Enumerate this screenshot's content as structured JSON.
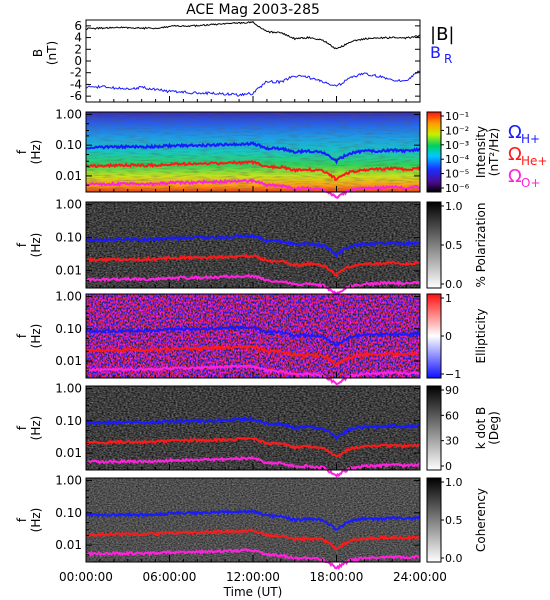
{
  "title": "ACE Mag 2003-285",
  "x_axis": {
    "label": "Time (UT)",
    "tick_labels": [
      "00:00:00",
      "06:00:00",
      "12:00:00",
      "18:00:00",
      "24:00:00"
    ],
    "tick_hours": [
      0,
      6,
      12,
      18,
      24
    ],
    "range_hours": [
      0,
      24
    ]
  },
  "line_panel": {
    "ylabel_top": "B",
    "ylabel_bottom": "(nT)",
    "yticks": [
      "6",
      "4",
      "2",
      "0",
      "-2",
      "-4",
      "-6"
    ],
    "ytick_values": [
      6,
      4,
      2,
      0,
      -2,
      -4,
      -6
    ],
    "ylim": [
      -7,
      7
    ],
    "legend": {
      "b_label": "|B|",
      "br_label": "B",
      "br_sub": "R"
    }
  },
  "spectro_panels": [
    {
      "id": "intensity",
      "cb_label": "Intensity",
      "cb_unit": "(nT²/Hz)",
      "cb_ticks": [
        "10⁻¹",
        "10⁻²",
        "10⁻³",
        "10⁻⁴",
        "10⁻⁵",
        "10⁻⁶"
      ],
      "colormap": "rainbow"
    },
    {
      "id": "polarization",
      "cb_label": "% Polarization",
      "cb_unit": "",
      "cb_ticks": [
        "1.0",
        "0.5",
        "0.0"
      ],
      "colormap": "gray"
    },
    {
      "id": "ellipticity",
      "cb_label": "Ellipticity",
      "cb_unit": "",
      "cb_ticks": [
        "1",
        "0",
        "−1"
      ],
      "colormap": "bwr"
    },
    {
      "id": "kdotb",
      "cb_label": "k dot B",
      "cb_unit": "(Deg)",
      "cb_ticks": [
        "90",
        "60",
        "30",
        "0"
      ],
      "colormap": "gray"
    },
    {
      "id": "coherency",
      "cb_label": "Coherency",
      "cb_unit": "",
      "cb_ticks": [
        "1.0",
        "0.5",
        "0.0"
      ],
      "colormap": "gray"
    }
  ],
  "spectro_axis": {
    "ylabel_top": "f",
    "ylabel_bottom": "(Hz)",
    "yticks": [
      "1.00",
      "0.10",
      "0.01"
    ],
    "ytick_values": [
      1.0,
      0.1,
      0.01
    ],
    "ylim": [
      0.003,
      1.2
    ],
    "scale": "log"
  },
  "gyro_legend": [
    {
      "symbol": "Ω",
      "sub": "H+",
      "color": "#1a1aff"
    },
    {
      "symbol": "Ω",
      "sub": "He+",
      "color": "#ff1a1a"
    },
    {
      "symbol": "Ω",
      "sub": "O+",
      "color": "#ff22dd"
    }
  ],
  "colors": {
    "b_mag": "#000000",
    "b_r": "#1a1aff",
    "omega_h": "#1a1aff",
    "omega_he": "#ff1a1a",
    "omega_o": "#ff22dd"
  },
  "chart_data": {
    "type": "line",
    "title": "ACE Mag 2003-285",
    "xlabel": "Time (UT)",
    "ylabel": "B (nT)",
    "xlim": [
      0,
      24
    ],
    "ylim": [
      -7,
      7
    ],
    "x": [
      0,
      1,
      2,
      3,
      4,
      5,
      6,
      7,
      8,
      9,
      10,
      11,
      12,
      13,
      14,
      15,
      16,
      17,
      18,
      19,
      20,
      21,
      22,
      23,
      24
    ],
    "series": [
      {
        "name": "|B|",
        "values": [
          5.5,
          5.6,
          5.7,
          5.7,
          5.6,
          5.6,
          5.9,
          6.0,
          6.0,
          6.2,
          6.3,
          6.5,
          6.6,
          5.0,
          4.8,
          3.8,
          4.0,
          3.6,
          2.0,
          3.3,
          3.8,
          3.9,
          4.0,
          3.9,
          4.3
        ]
      },
      {
        "name": "B_R",
        "values": [
          -4.5,
          -4.4,
          -4.6,
          -4.8,
          -4.5,
          -4.9,
          -5.2,
          -5.3,
          -5.5,
          -5.5,
          -5.6,
          -5.8,
          -5.5,
          -3.5,
          -3.6,
          -2.5,
          -2.8,
          -3.5,
          -4.4,
          -2.8,
          -2.2,
          -2.6,
          -3.2,
          -3.5,
          -1.5
        ]
      }
    ],
    "gyrofrequencies_hz": {
      "H+": [
        0.085,
        0.085,
        0.088,
        0.09,
        0.088,
        0.09,
        0.095,
        0.098,
        0.1,
        0.102,
        0.105,
        0.11,
        0.112,
        0.08,
        0.078,
        0.06,
        0.065,
        0.058,
        0.03,
        0.055,
        0.065,
        0.065,
        0.07,
        0.065,
        0.072
      ],
      "He+": [
        0.021,
        0.021,
        0.022,
        0.0225,
        0.022,
        0.0225,
        0.024,
        0.0245,
        0.025,
        0.0255,
        0.026,
        0.0275,
        0.028,
        0.02,
        0.0195,
        0.015,
        0.016,
        0.0145,
        0.0075,
        0.0138,
        0.016,
        0.0165,
        0.0175,
        0.0163,
        0.018
      ],
      "O+": [
        0.0054,
        0.0054,
        0.0055,
        0.0056,
        0.0055,
        0.0056,
        0.006,
        0.0061,
        0.0062,
        0.0064,
        0.0066,
        0.0068,
        0.007,
        0.005,
        0.0049,
        0.0038,
        0.004,
        0.0036,
        0.0019,
        0.0034,
        0.004,
        0.0041,
        0.0044,
        0.0041,
        0.0045
      ]
    }
  }
}
